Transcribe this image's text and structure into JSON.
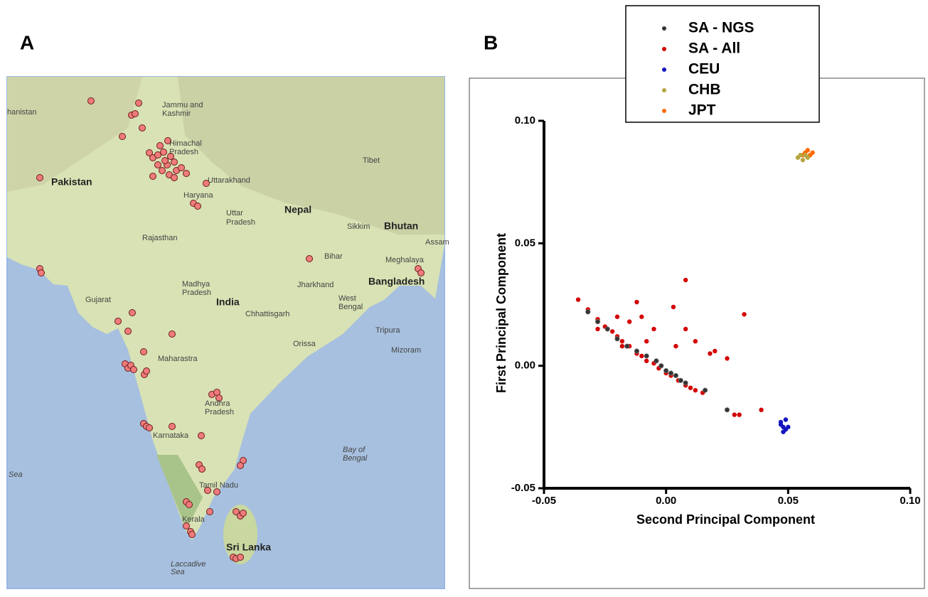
{
  "panels": {
    "a": {
      "label": "A",
      "map_labels": [
        "hanistan",
        "Jammu and",
        "Kashmir",
        "Himachal",
        "Pradesh",
        "Pakistan",
        "Tibet",
        "Uttarakhand",
        "Haryana",
        "Nepal",
        "Uttar",
        "Pradesh",
        "Sikkim",
        "Bhutan",
        "Assam",
        "Rajasthan",
        "Bihar",
        "Meghalaya",
        "Madhya",
        "Pradesh",
        "Jharkhand",
        "Bangladesh",
        "West",
        "Bengal",
        "Gujarat",
        "India",
        "Chhattisgarh",
        "Tripura",
        "Orissa",
        "Mizoram",
        "Maharastra",
        "Andhra",
        "Pradesh",
        "Karnataka",
        "Bay of",
        "Bengal",
        "Sea",
        "Tamil Nadu",
        "Kerala",
        "Sri Lanka",
        "Laccadive",
        "Sea"
      ]
    },
    "b": {
      "label": "B"
    }
  },
  "chart_data": {
    "type": "scatter",
    "x_label": "Second Principal Component",
    "y_label": "First Principal Component",
    "xlim": [
      -0.05,
      0.1
    ],
    "ylim": [
      -0.05,
      0.1
    ],
    "xticks": [
      -0.05,
      {
        "value": 0,
        "label": "0.00"
      },
      0.05,
      {
        "value": 0.1,
        "label": "0.10"
      }
    ],
    "yticks": [
      -0.05,
      {
        "value": 0,
        "label": "0.00"
      },
      0.05,
      {
        "value": 0.1,
        "label": "0.10"
      }
    ],
    "series": [
      {
        "name": "SA - NGS",
        "color": "#333333",
        "x": [
          -0.032,
          -0.028,
          -0.024,
          -0.02,
          -0.016,
          -0.012,
          -0.008,
          -0.004,
          -0.002,
          0,
          0.002,
          0.004,
          0.006,
          0.008,
          0.016,
          0.025
        ],
        "y": [
          0.022,
          0.018,
          0.015,
          0.011,
          0.008,
          0.006,
          0.004,
          0.002,
          0,
          -0.002,
          -0.003,
          -0.004,
          -0.006,
          -0.007,
          -0.01,
          -0.018
        ]
      },
      {
        "name": "SA - All",
        "color": "#d40000",
        "x": [
          -0.036,
          -0.032,
          -0.028,
          -0.025,
          -0.022,
          -0.02,
          -0.018,
          -0.015,
          -0.012,
          -0.01,
          -0.008,
          -0.005,
          -0.003,
          0,
          0.002,
          0.005,
          0.008,
          0.01,
          0.012,
          0.015,
          -0.02,
          -0.015,
          -0.01,
          -0.005,
          0.003,
          0.008,
          0.012,
          0.02,
          0.025,
          0.032,
          0.03,
          0.039,
          0.028,
          -0.012,
          -0.008,
          0.008,
          -0.028,
          -0.018,
          0.004,
          0.018
        ],
        "y": [
          0.027,
          0.023,
          0.019,
          0.016,
          0.014,
          0.012,
          0.01,
          0.008,
          0.005,
          0.004,
          0.002,
          0.001,
          -0.001,
          -0.003,
          -0.004,
          -0.006,
          -0.008,
          -0.009,
          -0.01,
          -0.011,
          0.02,
          0.018,
          0.02,
          0.015,
          0.024,
          0.035,
          0.01,
          0.006,
          0.003,
          0.021,
          -0.02,
          -0.018,
          -0.02,
          0.026,
          0.01,
          0.015,
          0.015,
          0.008,
          0.008,
          0.005
        ]
      },
      {
        "name": "CEU",
        "color": "#1515c0",
        "x": [
          0.047,
          0.048,
          0.049,
          0.05,
          0.047,
          0.049,
          0.048
        ],
        "y": [
          -0.024,
          -0.025,
          -0.026,
          -0.025,
          -0.023,
          -0.022,
          -0.027
        ]
      },
      {
        "name": "CHB",
        "color": "#b5a642",
        "x": [
          0.054,
          0.055,
          0.056,
          0.057,
          0.058
        ],
        "y": [
          0.085,
          0.086,
          0.084,
          0.086,
          0.085
        ]
      },
      {
        "name": "JPT",
        "color": "#ff6a00",
        "x": [
          0.056,
          0.057,
          0.058,
          0.059,
          0.06
        ],
        "y": [
          0.086,
          0.087,
          0.088,
          0.086,
          0.087
        ]
      }
    ]
  }
}
